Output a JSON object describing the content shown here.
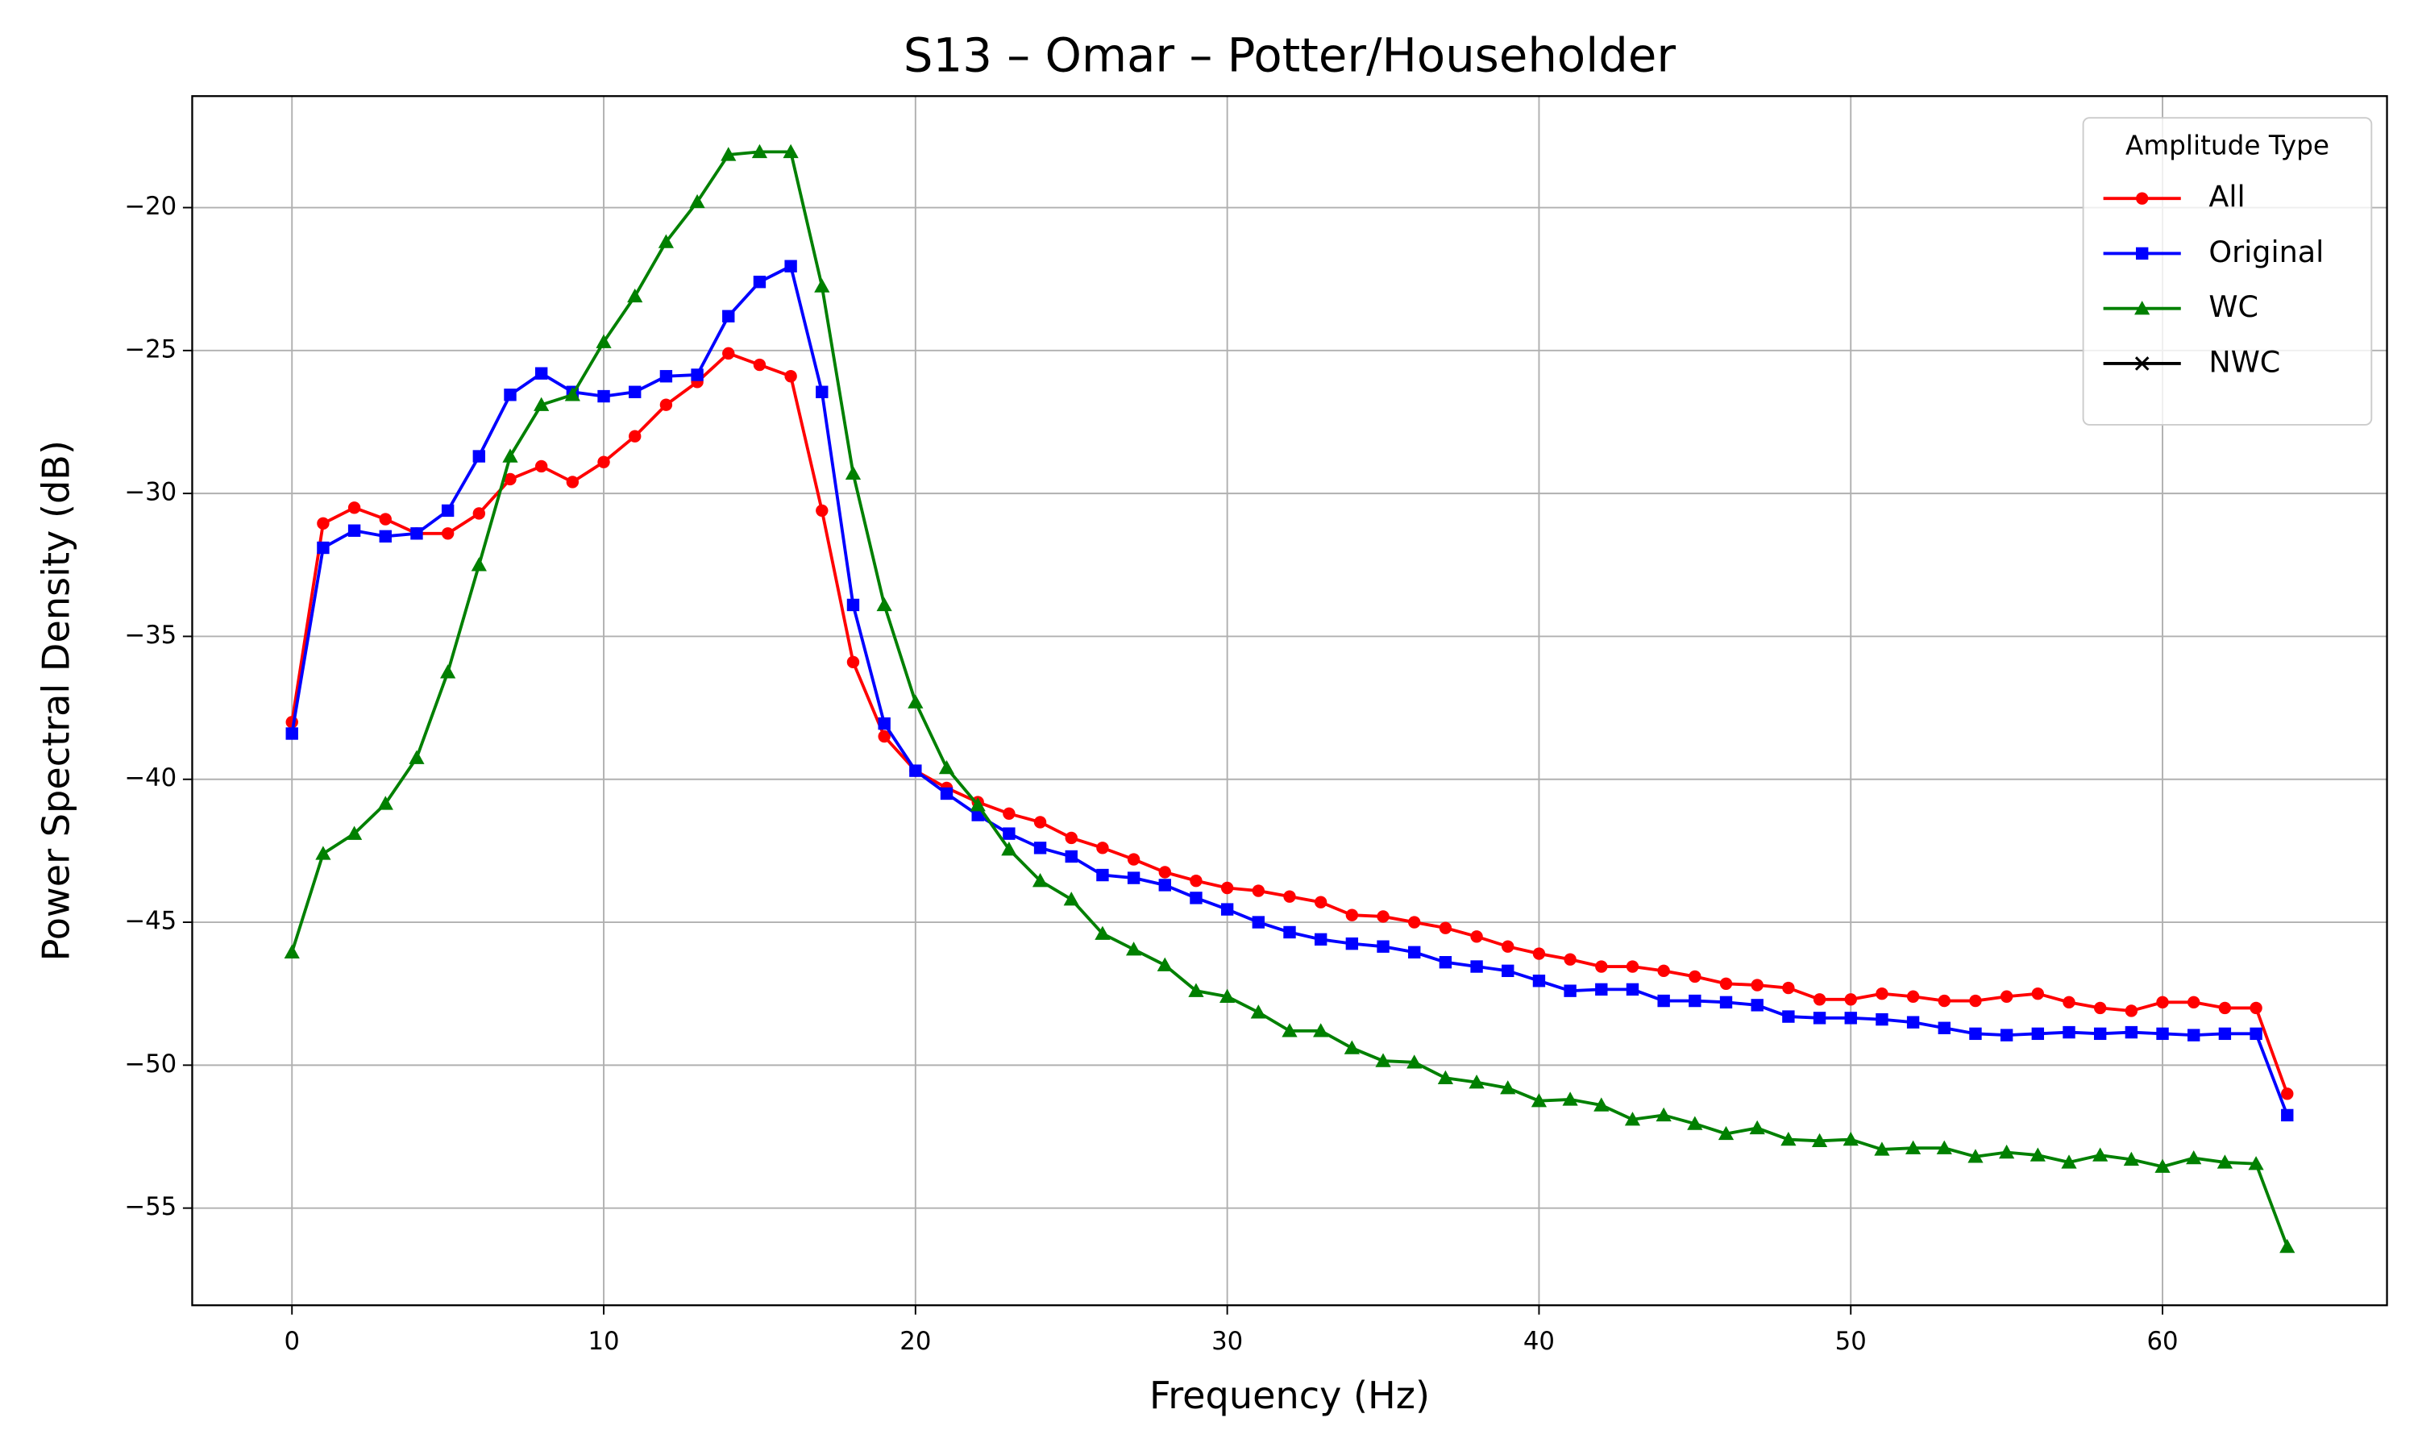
{
  "chart_data": {
    "type": "line",
    "title": "S13 – Omar – Potter/Householder",
    "x_label": "Frequency (Hz)",
    "y_label": "Power Spectral Density (dB)",
    "legend_title": "Amplitude Type",
    "legend_position": "upper right",
    "grid": true,
    "x": [
      0,
      1,
      2,
      3,
      4,
      5,
      6,
      7,
      8,
      9,
      10,
      11,
      12,
      13,
      14,
      15,
      16,
      17,
      18,
      19,
      20,
      21,
      22,
      23,
      24,
      25,
      26,
      27,
      28,
      29,
      30,
      31,
      32,
      33,
      34,
      35,
      36,
      37,
      38,
      39,
      40,
      41,
      42,
      43,
      44,
      45,
      46,
      47,
      48,
      49,
      50,
      51,
      52,
      53,
      54,
      55,
      56,
      57,
      58,
      59,
      60,
      61,
      62,
      63,
      64
    ],
    "xlim": [
      -3.2,
      67.2
    ],
    "xticks": [
      0,
      10,
      20,
      30,
      40,
      50,
      60
    ],
    "ylim": [
      -58.4,
      -16.1
    ],
    "yticks": [
      {
        "value": -20,
        "label": "−20"
      },
      {
        "value": -25,
        "label": "−25"
      },
      {
        "value": -30,
        "label": "−30"
      },
      {
        "value": -35,
        "label": "−35"
      },
      {
        "value": -40,
        "label": "−40"
      },
      {
        "value": -45,
        "label": "−45"
      },
      {
        "value": -50,
        "label": "−50"
      },
      {
        "value": -55,
        "label": "−55"
      }
    ],
    "series": [
      {
        "name": "All",
        "color": "#ff0000",
        "marker": "circle",
        "values": [
          -38.0,
          -31.05,
          -30.5,
          -30.9,
          -31.4,
          -31.4,
          -30.7,
          -29.5,
          -29.05,
          -29.6,
          -28.9,
          -28.0,
          -26.9,
          -26.1,
          -25.1,
          -25.5,
          -25.9,
          -30.6,
          -35.9,
          -38.5,
          -39.7,
          -40.3,
          -40.8,
          -41.2,
          -41.5,
          -42.05,
          -42.4,
          -42.8,
          -43.25,
          -43.55,
          -43.8,
          -43.9,
          -44.1,
          -44.3,
          -44.75,
          -44.8,
          -45.0,
          -45.2,
          -45.5,
          -45.85,
          -46.1,
          -46.3,
          -46.55,
          -46.55,
          -46.7,
          -46.9,
          -47.15,
          -47.2,
          -47.3,
          -47.7,
          -47.7,
          -47.5,
          -47.6,
          -47.75,
          -47.75,
          -47.6,
          -47.5,
          -47.8,
          -48.0,
          -48.1,
          -47.8,
          -47.8,
          -48.0,
          -48.0,
          -51.0
        ]
      },
      {
        "name": "Original",
        "color": "#0000ff",
        "marker": "square",
        "values": [
          -38.4,
          -31.9,
          -31.3,
          -31.5,
          -31.4,
          -30.6,
          -28.7,
          -26.55,
          -25.8,
          -26.45,
          -26.6,
          -26.45,
          -25.9,
          -25.85,
          -23.8,
          -22.6,
          -22.05,
          -26.45,
          -33.9,
          -38.05,
          -39.7,
          -40.5,
          -41.25,
          -41.9,
          -42.4,
          -42.7,
          -43.35,
          -43.45,
          -43.7,
          -44.15,
          -44.55,
          -45.0,
          -45.35,
          -45.6,
          -45.75,
          -45.85,
          -46.05,
          -46.4,
          -46.55,
          -46.7,
          -47.05,
          -47.4,
          -47.35,
          -47.35,
          -47.75,
          -47.75,
          -47.8,
          -47.9,
          -48.3,
          -48.35,
          -48.35,
          -48.4,
          -48.5,
          -48.7,
          -48.9,
          -48.95,
          -48.9,
          -48.85,
          -48.9,
          -48.85,
          -48.9,
          -48.95,
          -48.9,
          -48.9,
          -51.75
        ]
      },
      {
        "name": "WC",
        "color": "#008000",
        "marker": "triangle",
        "values": [
          -46.05,
          -42.6,
          -41.9,
          -40.85,
          -39.25,
          -36.25,
          -32.5,
          -28.7,
          -26.9,
          -26.55,
          -24.7,
          -23.1,
          -21.2,
          -19.8,
          -18.15,
          -18.05,
          -18.05,
          -22.75,
          -29.3,
          -33.9,
          -37.3,
          -39.6,
          -40.9,
          -42.45,
          -43.55,
          -44.2,
          -45.4,
          -45.95,
          -46.5,
          -47.4,
          -47.6,
          -48.15,
          -48.8,
          -48.8,
          -49.4,
          -49.85,
          -49.9,
          -50.45,
          -50.6,
          -50.8,
          -51.25,
          -51.2,
          -51.4,
          -51.9,
          -51.75,
          -52.05,
          -52.4,
          -52.2,
          -52.6,
          -52.65,
          -52.6,
          -52.95,
          -52.9,
          -52.9,
          -53.2,
          -53.05,
          -53.15,
          -53.4,
          -53.15,
          -53.3,
          -53.55,
          -53.25,
          -53.4,
          -53.45,
          -56.35
        ]
      },
      {
        "name": "NWC",
        "color": "#000000",
        "marker": "x",
        "values": [
          null,
          null,
          null,
          null,
          null,
          null,
          null,
          null,
          null,
          null,
          null,
          null,
          null,
          null,
          null,
          null,
          null,
          null,
          null,
          null,
          null,
          null,
          null,
          null,
          null,
          null,
          null,
          null,
          null,
          null,
          null,
          null,
          null,
          null,
          null,
          null,
          null,
          null,
          null,
          null,
          null,
          null,
          null,
          null,
          null,
          null,
          null,
          null,
          null,
          null,
          null,
          null,
          null,
          null,
          null,
          null,
          null,
          null,
          null,
          null,
          null,
          null,
          null,
          null,
          null
        ]
      }
    ]
  }
}
